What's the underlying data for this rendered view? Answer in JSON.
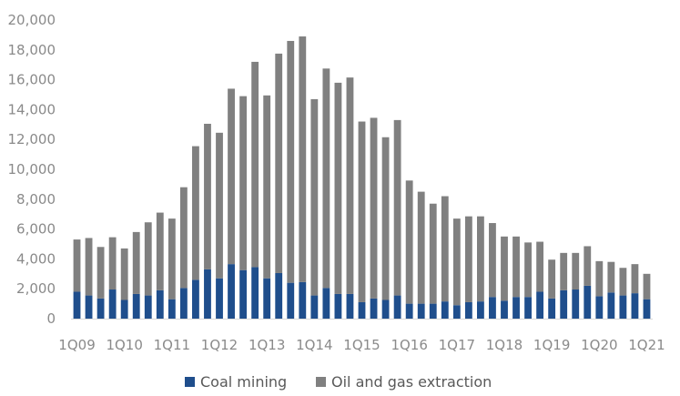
{
  "chart_data": {
    "type": "bar",
    "stacked": true,
    "grid": false,
    "legend_position": "bottom",
    "ylim": [
      0,
      20000
    ],
    "yticks": [
      "0",
      "2,000",
      "4,000",
      "6,000",
      "8,000",
      "10,000",
      "12,000",
      "14,000",
      "16,000",
      "18,000",
      "20,000"
    ],
    "ytick_values": [
      0,
      2000,
      4000,
      6000,
      8000,
      10000,
      12000,
      14000,
      16000,
      18000,
      20000
    ],
    "xtick_labels": [
      "1Q09",
      "1Q10",
      "1Q11",
      "1Q12",
      "1Q13",
      "1Q14",
      "1Q15",
      "1Q16",
      "1Q17",
      "1Q18",
      "1Q19",
      "1Q20",
      "1Q21"
    ],
    "categories": [
      "1Q09",
      "2Q09",
      "3Q09",
      "4Q09",
      "1Q10",
      "2Q10",
      "3Q10",
      "4Q10",
      "1Q11",
      "2Q11",
      "3Q11",
      "4Q11",
      "1Q12",
      "2Q12",
      "3Q12",
      "4Q12",
      "1Q13",
      "2Q13",
      "3Q13",
      "4Q13",
      "1Q14",
      "2Q14",
      "3Q14",
      "4Q14",
      "1Q15",
      "2Q15",
      "3Q15",
      "4Q15",
      "1Q16",
      "2Q16",
      "3Q16",
      "4Q16",
      "1Q17",
      "2Q17",
      "3Q17",
      "4Q17",
      "1Q18",
      "2Q18",
      "3Q18",
      "4Q18",
      "1Q19",
      "2Q19",
      "3Q19",
      "4Q19",
      "1Q20",
      "2Q20",
      "3Q20",
      "4Q20",
      "1Q21"
    ],
    "series": [
      {
        "name": "Coal mining",
        "color": "#1f4e8c",
        "values": [
          1800,
          1550,
          1350,
          1950,
          1250,
          1650,
          1550,
          1900,
          1300,
          2050,
          2600,
          3300,
          2700,
          3650,
          3250,
          3450,
          2700,
          3050,
          2400,
          2450,
          1550,
          2050,
          1650,
          1650,
          1100,
          1350,
          1250,
          1550,
          1000,
          1000,
          1000,
          1150,
          900,
          1100,
          1150,
          1450,
          1200,
          1450,
          1450,
          1800,
          1350,
          1900,
          1950,
          2200,
          1500,
          1750,
          1550,
          1700,
          1300
        ]
      },
      {
        "name": "Oil and gas extraction",
        "color": "#808080",
        "values": [
          3500,
          3850,
          3450,
          3500,
          3450,
          4150,
          4900,
          5200,
          5400,
          6750,
          8950,
          9750,
          9750,
          11750,
          11650,
          13750,
          12250,
          14700,
          16200,
          16450,
          13150,
          14700,
          14150,
          14500,
          12100,
          12100,
          10900,
          11750,
          8250,
          7500,
          6700,
          7050,
          5800,
          5750,
          5700,
          4950,
          4300,
          4050,
          3650,
          3350,
          2600,
          2500,
          2450,
          2650,
          2350,
          2050,
          1850,
          1950,
          1700
        ]
      }
    ]
  }
}
